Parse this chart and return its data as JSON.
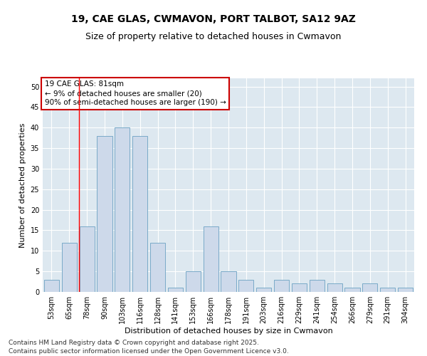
{
  "title": "19, CAE GLAS, CWMAVON, PORT TALBOT, SA12 9AZ",
  "subtitle": "Size of property relative to detached houses in Cwmavon",
  "xlabel": "Distribution of detached houses by size in Cwmavon",
  "ylabel": "Number of detached properties",
  "categories": [
    "53sqm",
    "65sqm",
    "78sqm",
    "90sqm",
    "103sqm",
    "116sqm",
    "128sqm",
    "141sqm",
    "153sqm",
    "166sqm",
    "178sqm",
    "191sqm",
    "203sqm",
    "216sqm",
    "229sqm",
    "241sqm",
    "254sqm",
    "266sqm",
    "279sqm",
    "291sqm",
    "304sqm"
  ],
  "values": [
    3,
    12,
    16,
    38,
    40,
    38,
    12,
    1,
    5,
    16,
    5,
    3,
    1,
    3,
    2,
    3,
    2,
    1,
    2,
    1,
    1
  ],
  "bar_color": "#cdd9ea",
  "bar_edge_color": "#7aaac8",
  "background_color": "#dde8f0",
  "grid_color": "#ffffff",
  "annotation_text": "19 CAE GLAS: 81sqm\n← 9% of detached houses are smaller (20)\n90% of semi-detached houses are larger (190) →",
  "annotation_box_color": "#ffffff",
  "annotation_box_edge_color": "#cc0000",
  "redline_x": 1.57,
  "ylim": [
    0,
    52
  ],
  "yticks": [
    0,
    5,
    10,
    15,
    20,
    25,
    30,
    35,
    40,
    45,
    50
  ],
  "footer": "Contains HM Land Registry data © Crown copyright and database right 2025.\nContains public sector information licensed under the Open Government Licence v3.0.",
  "title_fontsize": 10,
  "subtitle_fontsize": 9,
  "xlabel_fontsize": 8,
  "ylabel_fontsize": 8,
  "tick_fontsize": 7,
  "annotation_fontsize": 7.5,
  "footer_fontsize": 6.5,
  "fig_facecolor": "#ffffff"
}
